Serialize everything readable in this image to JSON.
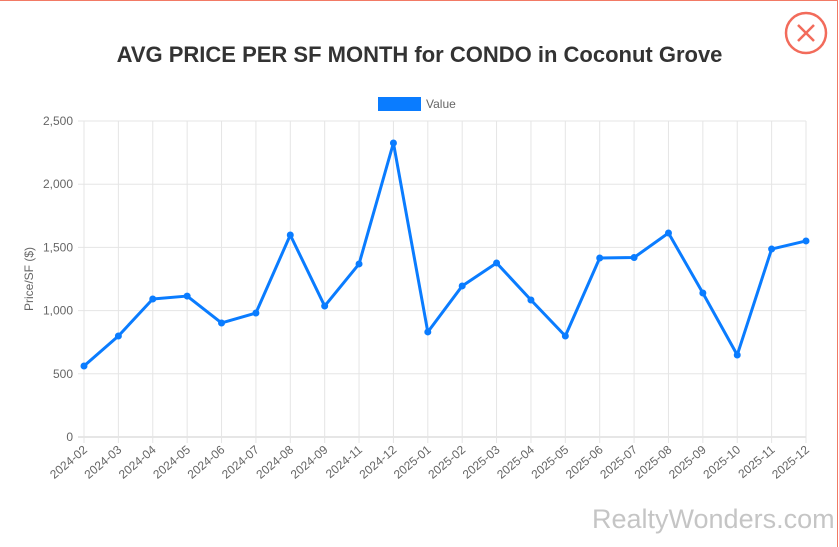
{
  "title": "AVG PRICE PER SF MONTH for CONDO in Coconut Grove",
  "close_icon": "circle-x-icon",
  "watermark": "RealtyWonders.com",
  "colors": {
    "line": "#0a7cff",
    "close": "#f26b5b",
    "grid": "#e5e5e5"
  },
  "chart_data": {
    "type": "line",
    "title": "AVG PRICE PER SF MONTH for CONDO in Coconut Grove",
    "xlabel": "",
    "ylabel": "Price/SF ($)",
    "ylim": [
      0,
      2500
    ],
    "yticks": [
      "0",
      "500",
      "1,000",
      "1,500",
      "2,000",
      "2,500"
    ],
    "ytick_values": [
      0,
      500,
      1000,
      1500,
      2000,
      2500
    ],
    "grid": true,
    "legend": "top",
    "categories": [
      "2024-02",
      "2024-03",
      "2024-04",
      "2024-05",
      "2024-06",
      "2024-07",
      "2024-08",
      "2024-09",
      "2024-11",
      "2024-12",
      "2025-01",
      "2025-02",
      "2025-03",
      "2025-04",
      "2025-05",
      "2025-06",
      "2025-07",
      "2025-08",
      "2025-09",
      "2025-10",
      "2025-11",
      "2025-12"
    ],
    "series": [
      {
        "name": "Value",
        "values": [
          562,
          799,
          1092,
          1115,
          902,
          981,
          1598,
          1036,
          1369,
          2326,
          831,
          1195,
          1377,
          1084,
          799,
          1416,
          1420,
          1614,
          1139,
          649,
          1487,
          1551
        ]
      }
    ]
  }
}
